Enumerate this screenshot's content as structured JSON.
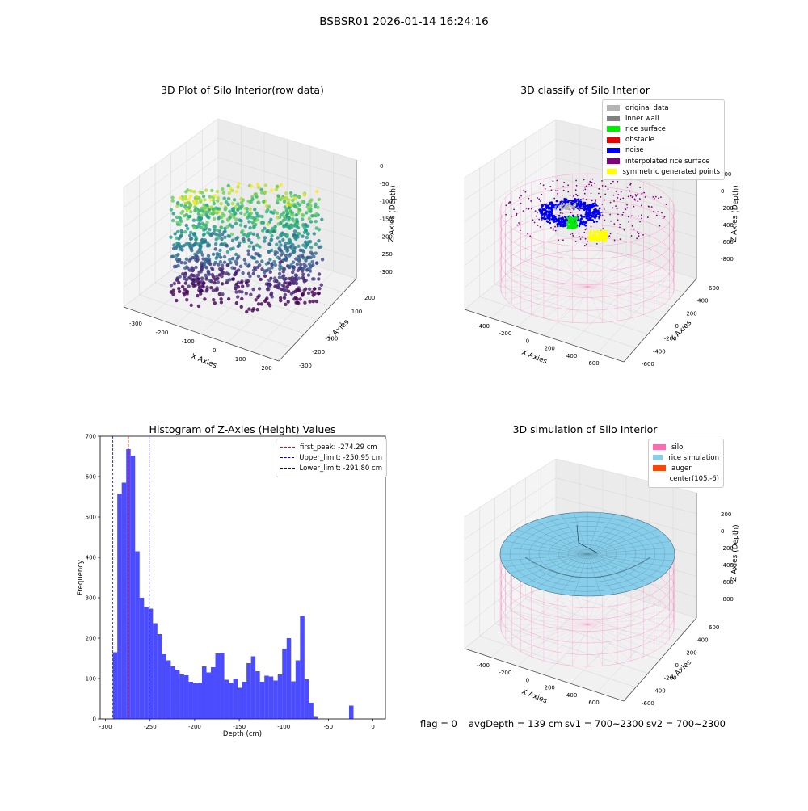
{
  "figure": {
    "title": "BSBSR01 2026-01-14 16:24:16"
  },
  "panels": {
    "raw3d": {
      "title": "3D Plot of Silo Interior(row data)",
      "xlabel": "X Axies",
      "ylabel": "Y Axies",
      "zlabel": "Z Axies (Depth)",
      "xticks": [
        "-300",
        "-200",
        "-100",
        "0",
        "100",
        "200"
      ],
      "yticks": [
        "-300",
        "-200",
        "-100",
        "0",
        "100",
        "200"
      ],
      "zticks": [
        "0",
        "-50",
        "-100",
        "-150",
        "-200",
        "-250",
        "-300"
      ]
    },
    "classify3d": {
      "title": "3D classify of Silo Interior",
      "xlabel": "X Axies",
      "ylabel": "Y Axies",
      "zlabel": "Z Axies (Depth)",
      "xticks": [
        "-400",
        "-200",
        "0",
        "200",
        "400",
        "600"
      ],
      "yticks": [
        "-600",
        "-400",
        "-200",
        "0",
        "200",
        "400",
        "600"
      ],
      "zticks": [
        "200",
        "0",
        "-200",
        "-400",
        "-600",
        "-800"
      ],
      "legend": [
        {
          "label": "original data",
          "color": "#b4b4b4"
        },
        {
          "label": "inner wall",
          "color": "#808080"
        },
        {
          "label": "rice surface",
          "color": "#00ee00"
        },
        {
          "label": "obstacle",
          "color": "#ee0000"
        },
        {
          "label": "noise",
          "color": "#0000ee"
        },
        {
          "label": "interpolated rice surface",
          "color": "#800080"
        },
        {
          "label": "symmetric generated points",
          "color": "#ffff00"
        }
      ]
    },
    "simulation3d": {
      "title": "3D simulation of Silo Interior",
      "xlabel": "X Axies",
      "ylabel": "Y Axies",
      "zlabel": "Z Axies (Depth)",
      "xticks": [
        "-400",
        "-200",
        "0",
        "200",
        "400",
        "600"
      ],
      "yticks": [
        "-600",
        "-400",
        "-200",
        "0",
        "200",
        "400",
        "600"
      ],
      "zticks": [
        "200",
        "0",
        "-200",
        "-400",
        "-600",
        "-800"
      ],
      "legend": [
        {
          "label": "silo",
          "color": "#ff69b4"
        },
        {
          "label": "rice simulation",
          "color": "#87ceeb"
        },
        {
          "label": "auger",
          "color": "#ff4500"
        },
        {
          "label": "center(105,-6)",
          "color": ""
        }
      ]
    }
  },
  "chart_data": {
    "type": "bar",
    "title": "Histogram of Z-Axies (Height) Values",
    "xlabel": "Depth (cm)",
    "ylabel": "Frequency",
    "xlim": [
      -306,
      14
    ],
    "ylim": [
      0,
      700
    ],
    "xticks": [
      -300,
      -250,
      -200,
      -150,
      -100,
      -50,
      0
    ],
    "yticks": [
      0,
      100,
      200,
      300,
      400,
      500,
      600,
      700
    ],
    "bin_start": -291.8,
    "bin_width": 5,
    "color": "#0000ff",
    "values": [
      165,
      558,
      585,
      668,
      652,
      415,
      300,
      277,
      273,
      237,
      210,
      160,
      145,
      130,
      122,
      110,
      108,
      92,
      88,
      90,
      130,
      115,
      128,
      162,
      163,
      97,
      88,
      100,
      77,
      92,
      138,
      155,
      118,
      92,
      107,
      105,
      95,
      110,
      174,
      200,
      93,
      145,
      255,
      98,
      40,
      5,
      0,
      0,
      0,
      0,
      0,
      0,
      0,
      33
    ],
    "reference_lines": [
      {
        "name": "first_peak: -274.29 cm",
        "x": -274.29,
        "color": "#ff0000"
      },
      {
        "name": "Upper_limit: -250.95 cm",
        "x": -250.95,
        "color": "#0000cc"
      },
      {
        "name": "Lower_limit: -291.80 cm",
        "x": -291.8,
        "color": "#0000cc"
      }
    ],
    "legend_position": "top-right"
  },
  "footer": {
    "flag": "flag = 0",
    "avg_depth": "avgDepth = 139 cm",
    "sv1": "sv1 = 700~2300",
    "sv2": "sv2 = 700~2300"
  }
}
